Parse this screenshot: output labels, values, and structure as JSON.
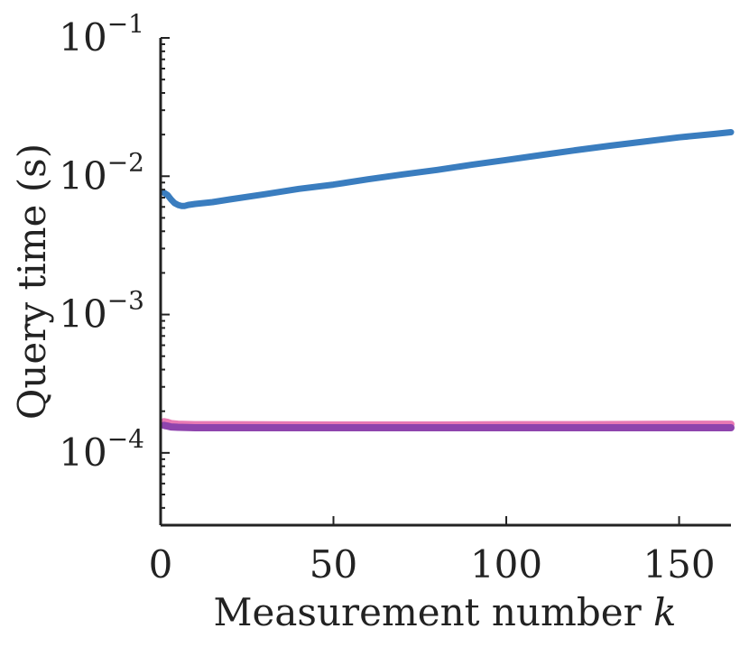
{
  "chart_data": {
    "type": "line",
    "title": "",
    "xlabel": "Measurement number",
    "xlabel_var": "k",
    "ylabel": "Query time (s)",
    "xlim": [
      0,
      165
    ],
    "ylim": [
      3e-05,
      0.1
    ],
    "yscale": "log",
    "grid": false,
    "x_ticks": [
      0,
      50,
      100,
      150
    ],
    "x_tick_labels": [
      "0",
      "50",
      "100",
      "150"
    ],
    "y_ticks": [
      0.0001,
      0.001,
      0.01,
      0.1
    ],
    "y_tick_labels": [
      {
        "base": "10",
        "exp": "−4"
      },
      {
        "base": "10",
        "exp": "−3"
      },
      {
        "base": "10",
        "exp": "−2"
      },
      {
        "base": "10",
        "exp": "−1"
      }
    ],
    "series": [
      {
        "color": "#3a7dbf",
        "x": [
          1,
          2,
          3,
          4,
          5,
          6,
          7,
          8,
          10,
          15,
          20,
          30,
          40,
          50,
          60,
          70,
          80,
          90,
          100,
          110,
          120,
          130,
          140,
          150,
          160,
          165
        ],
        "values": [
          0.0076,
          0.0073,
          0.0068,
          0.0064,
          0.0062,
          0.0061,
          0.0061,
          0.0062,
          0.0063,
          0.0065,
          0.0068,
          0.0074,
          0.0081,
          0.0087,
          0.0095,
          0.0103,
          0.0111,
          0.0121,
          0.0131,
          0.0142,
          0.0154,
          0.0166,
          0.0178,
          0.0191,
          0.0202,
          0.0208
        ]
      },
      {
        "color": "#e879b4",
        "x": [
          1,
          2,
          3,
          5,
          10,
          20,
          50,
          80,
          100,
          120,
          150,
          165
        ],
        "values": [
          0.000168,
          0.000166,
          0.000163,
          0.000161,
          0.00016,
          0.00016,
          0.000159,
          0.000159,
          0.00016,
          0.00016,
          0.000161,
          0.000161
        ]
      },
      {
        "color": "#8e44ad",
        "x": [
          1,
          2,
          3,
          5,
          10,
          20,
          50,
          80,
          100,
          120,
          150,
          165
        ],
        "values": [
          0.000158,
          0.000156,
          0.000154,
          0.000153,
          0.000152,
          0.000152,
          0.000152,
          0.000152,
          0.000152,
          0.000152,
          0.000152,
          0.000152
        ]
      }
    ]
  }
}
